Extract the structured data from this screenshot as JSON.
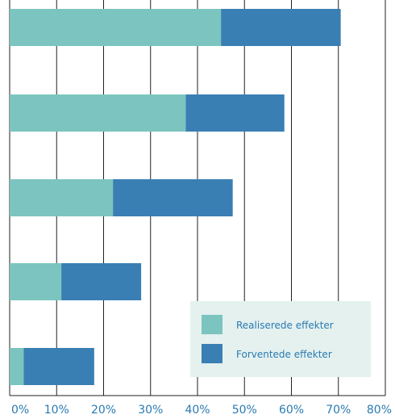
{
  "chart_data": {
    "type": "bar",
    "orientation": "horizontal",
    "stacked": true,
    "title": "",
    "xlabel": "",
    "ylabel": "",
    "xlim": [
      0,
      80
    ],
    "xticks": [
      "0%",
      "10%",
      "20%",
      "30%",
      "40%",
      "50%",
      "60%",
      "70%",
      "80%"
    ],
    "grid": true,
    "legend_position": "bottom-right",
    "categories": [
      "",
      "",
      "",
      "",
      ""
    ],
    "series": [
      {
        "name": "Realiserede effekter",
        "color": "#7cc4bf",
        "values": [
          45,
          37.5,
          22,
          11,
          3
        ]
      },
      {
        "name": "Forventede effekter",
        "color": "#3a7fb3",
        "values": [
          25.5,
          21,
          25.5,
          17,
          15
        ]
      }
    ],
    "legend_background": "#e4f1ef",
    "tick_color": "#2a7ab0"
  }
}
